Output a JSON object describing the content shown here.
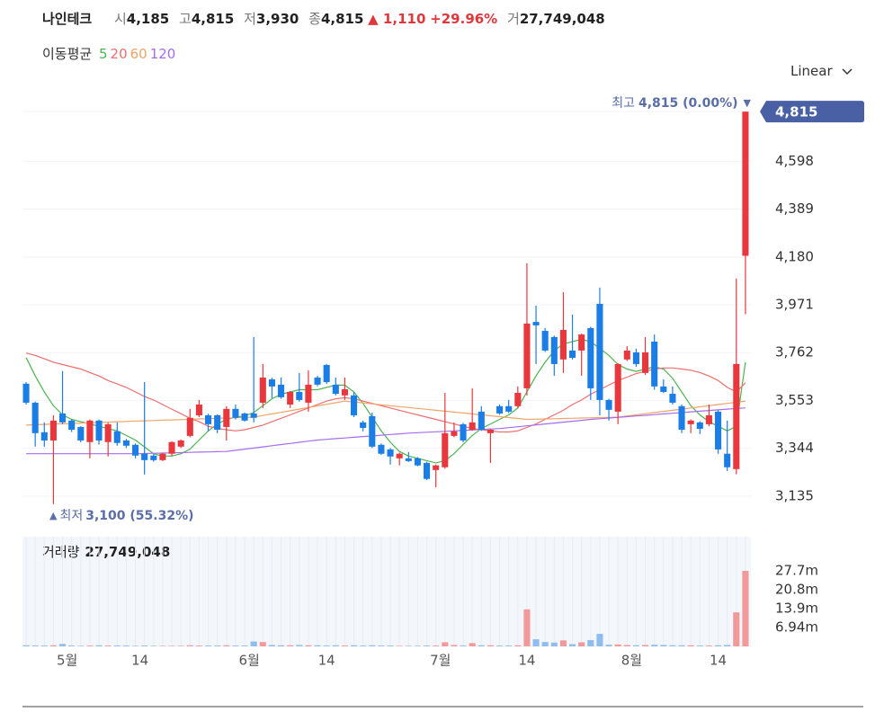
{
  "header": {
    "name": "나인테크",
    "open": {
      "label": "시",
      "value": "4,185"
    },
    "high": {
      "label": "고",
      "value": "4,815"
    },
    "low": {
      "label": "저",
      "value": "3,930"
    },
    "close": {
      "label": "종",
      "value": "4,815"
    },
    "change": "▲ 1,110",
    "rate": "+29.96%",
    "volume": {
      "label": "거",
      "value": "27,749,048"
    }
  },
  "ma_title": "이동평균",
  "scale_toggle": "Linear",
  "chart_data": {
    "type": "candlestick",
    "up_color": "#e8373d",
    "down_color": "#1b7de6",
    "volume_up_color": "#f2999c",
    "volume_down_color": "#8fbdf0",
    "volume_title": "거래량",
    "xlim": [
      -0.4,
      79.6
    ],
    "xticks": [
      {
        "value": 4.5,
        "label": "5월"
      },
      {
        "value": 12.5,
        "label": "14"
      },
      {
        "value": 24.5,
        "label": "6월"
      },
      {
        "value": 33,
        "label": "14"
      },
      {
        "value": 45.5,
        "label": "7월"
      },
      {
        "value": 55,
        "label": "14"
      },
      {
        "value": 66.5,
        "label": "8월"
      },
      {
        "value": 76,
        "label": "14"
      }
    ],
    "ylim": [
      3040,
      4910
    ],
    "yticks": [
      {
        "value": 3135,
        "label": "3,135"
      },
      {
        "value": 3344,
        "label": "3,344"
      },
      {
        "value": 3553,
        "label": "3,553"
      },
      {
        "value": 3762,
        "label": "3,762"
      },
      {
        "value": 3971,
        "label": "3,971"
      },
      {
        "value": 4180,
        "label": "4,180"
      },
      {
        "value": 4389,
        "label": "4,389"
      },
      {
        "value": 4598,
        "label": "4,598"
      }
    ],
    "price_badge": {
      "value": 4815,
      "label": "4,815"
    },
    "high_note": {
      "label": "최고",
      "value": "4,815 (0.00%)",
      "marker": "▼"
    },
    "low_note": {
      "marker": "▲",
      "label": "최저",
      "value": "3,100 (55.32%)"
    },
    "volume_ylim": [
      0,
      40300000
    ],
    "volume_yticks": [
      {
        "value": 6940000,
        "label": "6.94m"
      },
      {
        "value": 13900000,
        "label": "13.9m"
      },
      {
        "value": 20800000,
        "label": "20.8m"
      },
      {
        "value": 27700000,
        "label": "27.7m"
      }
    ],
    "candles": [
      [
        3626,
        3633,
        3535,
        3543
      ],
      [
        3543,
        3548,
        3351,
        3410
      ],
      [
        3414,
        3457,
        3351,
        3378
      ],
      [
        3378,
        3488,
        3100,
        3465
      ],
      [
        3496,
        3681,
        3450,
        3457
      ],
      [
        3465,
        3470,
        3415,
        3425
      ],
      [
        3437,
        3440,
        3370,
        3378
      ],
      [
        3371,
        3470,
        3300,
        3465
      ],
      [
        3465,
        3470,
        3360,
        3378
      ],
      [
        3371,
        3455,
        3308,
        3449
      ],
      [
        3418,
        3457,
        3355,
        3367
      ],
      [
        3378,
        3385,
        3345,
        3355
      ],
      [
        3359,
        3365,
        3300,
        3312
      ],
      [
        3320,
        3633,
        3229,
        3292
      ],
      [
        3312,
        3318,
        3285,
        3292
      ],
      [
        3292,
        3325,
        3288,
        3320
      ],
      [
        3320,
        3375,
        3310,
        3371
      ],
      [
        3351,
        3382,
        3345,
        3378
      ],
      [
        3398,
        3516,
        3392,
        3477
      ],
      [
        3488,
        3555,
        3480,
        3535
      ],
      [
        3488,
        3495,
        3418,
        3449
      ],
      [
        3488,
        3492,
        3410,
        3425
      ],
      [
        3437,
        3528,
        3378,
        3516
      ],
      [
        3516,
        3535,
        3470,
        3477
      ],
      [
        3496,
        3500,
        3460,
        3465
      ],
      [
        3496,
        3830,
        3457,
        3477
      ],
      [
        3543,
        3712,
        3520,
        3653
      ],
      [
        3645,
        3652,
        3563,
        3614
      ],
      [
        3622,
        3653,
        3560,
        3567
      ],
      [
        3535,
        3594,
        3520,
        3590
      ],
      [
        3590,
        3673,
        3548,
        3555
      ],
      [
        3543,
        3684,
        3504,
        3622
      ],
      [
        3653,
        3660,
        3615,
        3622
      ],
      [
        3708,
        3712,
        3625,
        3633
      ],
      [
        3622,
        3653,
        3575,
        3582
      ],
      [
        3575,
        3653,
        3555,
        3602
      ],
      [
        3575,
        3590,
        3480,
        3488
      ],
      [
        3457,
        3465,
        3418,
        3433
      ],
      [
        3484,
        3500,
        3345,
        3351
      ],
      [
        3359,
        3365,
        3315,
        3320
      ],
      [
        3339,
        3345,
        3273,
        3308
      ],
      [
        3300,
        3325,
        3269,
        3320
      ],
      [
        3300,
        3327,
        3284,
        3288
      ],
      [
        3300,
        3305,
        3265,
        3269
      ],
      [
        3280,
        3285,
        3205,
        3210
      ],
      [
        3249,
        3273,
        3174,
        3269
      ],
      [
        3261,
        3586,
        3255,
        3410
      ],
      [
        3398,
        3457,
        3392,
        3418
      ],
      [
        3449,
        3455,
        3370,
        3378
      ],
      [
        3425,
        3606,
        3420,
        3457
      ],
      [
        3504,
        3528,
        3420,
        3425
      ],
      [
        3410,
        3430,
        3280,
        3425
      ],
      [
        3528,
        3535,
        3490,
        3496
      ],
      [
        3528,
        3555,
        3498,
        3504
      ],
      [
        3528,
        3614,
        3520,
        3586
      ],
      [
        3606,
        4152,
        3575,
        3889
      ],
      [
        3896,
        3967,
        3712,
        3881
      ],
      [
        3857,
        3869,
        3765,
        3771
      ],
      [
        3830,
        3836,
        3661,
        3712
      ],
      [
        3732,
        4026,
        3673,
        3861
      ],
      [
        3771,
        3928,
        3732,
        3739
      ],
      [
        3771,
        3845,
        3661,
        3841
      ],
      [
        3869,
        3875,
        3555,
        3606
      ],
      [
        3975,
        4046,
        3488,
        3555
      ],
      [
        3555,
        3560,
        3465,
        3512
      ],
      [
        3504,
        3716,
        3449,
        3712
      ],
      [
        3732,
        3790,
        3725,
        3771
      ],
      [
        3763,
        3779,
        3700,
        3712
      ],
      [
        3673,
        3830,
        3665,
        3763
      ],
      [
        3810,
        3841,
        3600,
        3614
      ],
      [
        3614,
        3645,
        3585,
        3590
      ],
      [
        3582,
        3614,
        3535,
        3543
      ],
      [
        3528,
        3535,
        3410,
        3425
      ],
      [
        3449,
        3470,
        3410,
        3465
      ],
      [
        3457,
        3462,
        3406,
        3429
      ],
      [
        3449,
        3535,
        3440,
        3488
      ],
      [
        3504,
        3510,
        3320,
        3339
      ],
      [
        3320,
        3465,
        3245,
        3261
      ],
      [
        3253,
        4085,
        3230,
        3712
      ],
      [
        4185,
        4815,
        3930,
        4815
      ]
    ],
    "volume": [
      400000,
      300000,
      300000,
      400000,
      900000,
      300000,
      200000,
      300000,
      400000,
      300000,
      300000,
      300000,
      200000,
      300000,
      200000,
      200000,
      200000,
      200000,
      400000,
      300000,
      300000,
      300000,
      400000,
      300000,
      300000,
      1800000,
      1600000,
      500000,
      400000,
      400000,
      500000,
      400000,
      400000,
      300000,
      400000,
      300000,
      400000,
      300000,
      400000,
      300000,
      300000,
      200000,
      200000,
      200000,
      300000,
      300000,
      1500000,
      500000,
      300000,
      1200000,
      400000,
      400000,
      300000,
      300000,
      400000,
      13600000,
      2600000,
      1600000,
      1400000,
      2200000,
      800000,
      1500000,
      2300000,
      4600000,
      600000,
      700000,
      500000,
      400000,
      500000,
      600000,
      500000,
      400000,
      400000,
      400000,
      300000,
      300000,
      400000,
      500000,
      12500000,
      27749048
    ],
    "ma": [
      {
        "name": "5",
        "color": "#4cb450",
        "values": [
          3740,
          3660,
          3590,
          3530,
          3490,
          3470,
          3460,
          3450,
          3440,
          3430,
          3420,
          3400,
          3380,
          3350,
          3320,
          3310,
          3310,
          3320,
          3340,
          3380,
          3420,
          3450,
          3470,
          3480,
          3485,
          3500,
          3530,
          3560,
          3580,
          3590,
          3600,
          3600,
          3600,
          3610,
          3620,
          3620,
          3590,
          3540,
          3480,
          3420,
          3370,
          3330,
          3310,
          3300,
          3290,
          3280,
          3290,
          3320,
          3360,
          3400,
          3430,
          3450,
          3470,
          3490,
          3520,
          3590,
          3660,
          3720,
          3770,
          3800,
          3810,
          3820,
          3810,
          3780,
          3750,
          3710,
          3690,
          3680,
          3690,
          3700,
          3690,
          3650,
          3590,
          3530,
          3490,
          3460,
          3440,
          3420,
          3440,
          3720
        ]
      },
      {
        "name": "20",
        "color": "#ef6d6d",
        "values": [
          3760,
          3750,
          3735,
          3720,
          3710,
          3700,
          3690,
          3675,
          3660,
          3640,
          3625,
          3610,
          3590,
          3570,
          3555,
          3535,
          3515,
          3495,
          3475,
          3460,
          3440,
          3430,
          3425,
          3420,
          3425,
          3435,
          3445,
          3460,
          3475,
          3490,
          3505,
          3520,
          3535,
          3550,
          3560,
          3565,
          3560,
          3550,
          3540,
          3530,
          3520,
          3510,
          3500,
          3490,
          3480,
          3470,
          3460,
          3450,
          3440,
          3430,
          3425,
          3420,
          3415,
          3415,
          3420,
          3435,
          3450,
          3470,
          3490,
          3510,
          3535,
          3555,
          3580,
          3600,
          3620,
          3640,
          3655,
          3670,
          3680,
          3690,
          3695,
          3695,
          3690,
          3685,
          3675,
          3660,
          3640,
          3610,
          3590,
          3630
        ]
      },
      {
        "name": "60",
        "color": "#f0a467",
        "values": [
          3445,
          3447,
          3448,
          3450,
          3451,
          3452,
          3454,
          3455,
          3457,
          3458,
          3460,
          3461,
          3463,
          3464,
          3465,
          3467,
          3468,
          3469,
          3471,
          3472,
          3473,
          3475,
          3476,
          3477,
          3479,
          3480,
          3487,
          3494,
          3501,
          3508,
          3515,
          3522,
          3529,
          3536,
          3543,
          3550,
          3546,
          3542,
          3538,
          3534,
          3530,
          3526,
          3522,
          3518,
          3514,
          3510,
          3506,
          3502,
          3498,
          3494,
          3490,
          3486,
          3482,
          3478,
          3474,
          3470,
          3471,
          3472,
          3473,
          3474,
          3475,
          3476,
          3477,
          3478,
          3479,
          3480,
          3485,
          3490,
          3495,
          3500,
          3505,
          3510,
          3515,
          3520,
          3525,
          3530,
          3535,
          3540,
          3545,
          3550
        ]
      },
      {
        "name": "120",
        "color": "#a66cf0",
        "values": [
          3320,
          3320,
          3320,
          3320,
          3320,
          3320,
          3320,
          3320,
          3320,
          3320,
          3320,
          3320,
          3320,
          3321,
          3322,
          3323,
          3324,
          3325,
          3326,
          3327,
          3328,
          3329,
          3330,
          3335,
          3340,
          3345,
          3350,
          3355,
          3360,
          3365,
          3370,
          3375,
          3380,
          3383,
          3386,
          3389,
          3392,
          3395,
          3398,
          3401,
          3404,
          3407,
          3410,
          3412,
          3414,
          3416,
          3418,
          3420,
          3422,
          3424,
          3426,
          3428,
          3430,
          3434,
          3438,
          3442,
          3446,
          3450,
          3454,
          3458,
          3462,
          3466,
          3470,
          3473,
          3476,
          3479,
          3482,
          3485,
          3488,
          3491,
          3494,
          3497,
          3500,
          3503,
          3506,
          3509,
          3512,
          3515,
          3518,
          3520
        ]
      }
    ]
  }
}
